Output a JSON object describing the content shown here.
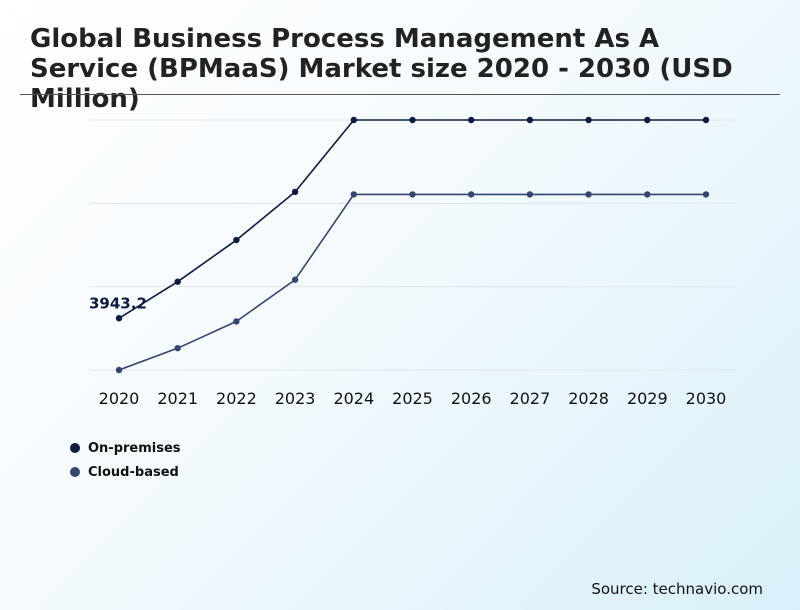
{
  "title": "Global Business Process Management As A Service (BPMaaS) Market size 2020 - 2030 (USD Million)",
  "source": "Source: technavio.com",
  "colors": {
    "on_premises": "#0d1b3e",
    "cloud_based": "#34456e",
    "grid": "#e1e6ea"
  },
  "chart_data": {
    "type": "line",
    "title": "Global Business Process Management As A Service (BPMaaS) Market size 2020 - 2030 (USD Million)",
    "xlabel": "",
    "ylabel": "",
    "categories": [
      "2020",
      "2021",
      "2022",
      "2023",
      "2024",
      "2025",
      "2026",
      "2027",
      "2028",
      "2029",
      "2030"
    ],
    "series": [
      {
        "name": "On-premises",
        "values": [
          3943.2,
          4680,
          5520,
          6490,
          7940,
          7940,
          7940,
          7940,
          7940,
          7940,
          7940
        ]
      },
      {
        "name": "Cloud-based",
        "values": [
          2900,
          3340,
          3880,
          4720,
          6440,
          6440,
          6440,
          6440,
          6440,
          6440,
          6440
        ]
      }
    ],
    "data_labels": [
      {
        "series": "On-premises",
        "category": "2020",
        "text": "3943.2"
      }
    ],
    "ylim": [
      2900,
      7940
    ],
    "grid": true,
    "y_tick_labels_shown": false,
    "legend": "bottom-left"
  }
}
